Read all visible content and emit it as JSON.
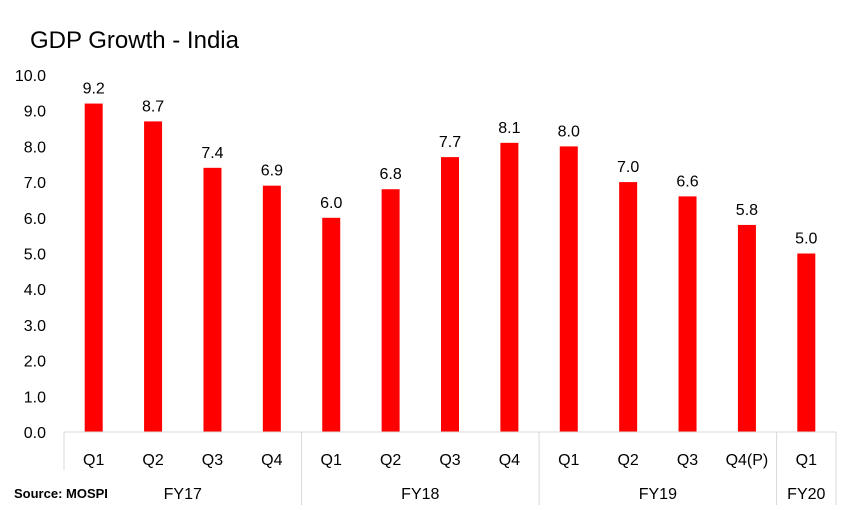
{
  "chart_data": {
    "type": "bar",
    "title": "GDP Growth - India",
    "source": "Source: MOSPI",
    "categories": [
      "Q1",
      "Q2",
      "Q3",
      "Q4",
      "Q1",
      "Q2",
      "Q3",
      "Q4",
      "Q1",
      "Q2",
      "Q3",
      "Q4(P)",
      "Q1"
    ],
    "groups": [
      {
        "label": "FY17",
        "count": 4
      },
      {
        "label": "FY18",
        "count": 4
      },
      {
        "label": "FY19",
        "count": 4
      },
      {
        "label": "FY20",
        "count": 1
      }
    ],
    "values": [
      9.2,
      8.7,
      7.4,
      6.9,
      6.0,
      6.8,
      7.7,
      8.1,
      8.0,
      7.0,
      6.6,
      5.8,
      5.0
    ],
    "data_labels": [
      "9.2",
      "8.7",
      "7.4",
      "6.9",
      "6.0",
      "6.8",
      "7.7",
      "8.1",
      "8.0",
      "7.0",
      "6.6",
      "5.8",
      "5.0"
    ],
    "yticks": [
      "0.0",
      "1.0",
      "2.0",
      "3.0",
      "4.0",
      "5.0",
      "6.0",
      "7.0",
      "8.0",
      "9.0",
      "10.0"
    ],
    "ylim": [
      0,
      10
    ],
    "grid": false,
    "bar_color": "#FF0000",
    "axis_color": "#D9D9D9"
  }
}
